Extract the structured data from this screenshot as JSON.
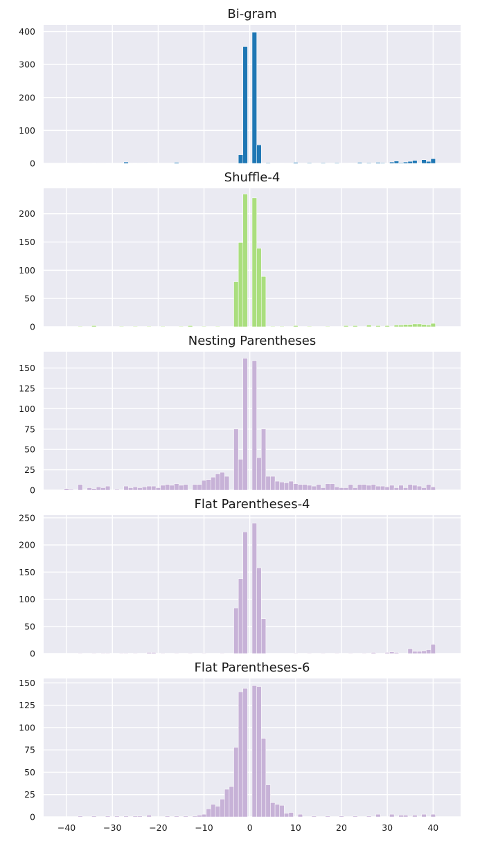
{
  "chart_data": [
    {
      "type": "bar",
      "title": "Bi-gram",
      "color": "#1f77b4",
      "ylim": [
        0,
        420
      ],
      "yticks": [
        0,
        100,
        200,
        300,
        400
      ],
      "xlim": [
        -45,
        46
      ],
      "xticks": [
        -40,
        -30,
        -20,
        -10,
        0,
        10,
        20,
        30,
        40
      ],
      "show_xtick_labels": false,
      "grid": true,
      "bars": [
        {
          "x": -40,
          "y": 1
        },
        {
          "x": -37,
          "y": 1
        },
        {
          "x": -34,
          "y": 1
        },
        {
          "x": -31,
          "y": 1
        },
        {
          "x": -27,
          "y": 4
        },
        {
          "x": -25,
          "y": 1
        },
        {
          "x": -22,
          "y": 1
        },
        {
          "x": -16,
          "y": 3
        },
        {
          "x": -13,
          "y": 1
        },
        {
          "x": -9,
          "y": 1
        },
        {
          "x": -6,
          "y": 1
        },
        {
          "x": -2,
          "y": 26
        },
        {
          "x": -1,
          "y": 354
        },
        {
          "x": 1,
          "y": 398
        },
        {
          "x": 2,
          "y": 56
        },
        {
          "x": 4,
          "y": 2
        },
        {
          "x": 7,
          "y": 1
        },
        {
          "x": 10,
          "y": 3
        },
        {
          "x": 13,
          "y": 2
        },
        {
          "x": 16,
          "y": 2
        },
        {
          "x": 19,
          "y": 2
        },
        {
          "x": 22,
          "y": 1
        },
        {
          "x": 24,
          "y": 3
        },
        {
          "x": 26,
          "y": 2
        },
        {
          "x": 28,
          "y": 3
        },
        {
          "x": 29,
          "y": 2
        },
        {
          "x": 31,
          "y": 4
        },
        {
          "x": 32,
          "y": 7
        },
        {
          "x": 33,
          "y": 2
        },
        {
          "x": 34,
          "y": 4
        },
        {
          "x": 35,
          "y": 6
        },
        {
          "x": 36,
          "y": 9
        },
        {
          "x": 38,
          "y": 11
        },
        {
          "x": 39,
          "y": 6
        },
        {
          "x": 40,
          "y": 14
        }
      ]
    },
    {
      "type": "bar",
      "title": "Shuffle-4",
      "color": "#aade7e",
      "ylim": [
        0,
        245
      ],
      "yticks": [
        0,
        50,
        100,
        150,
        200
      ],
      "xlim": [
        -45,
        46
      ],
      "xticks": [
        -40,
        -30,
        -20,
        -10,
        0,
        10,
        20,
        30,
        40
      ],
      "show_xtick_labels": false,
      "grid": true,
      "bars": [
        {
          "x": -37,
          "y": 1
        },
        {
          "x": -34,
          "y": 2
        },
        {
          "x": -28,
          "y": 1
        },
        {
          "x": -25,
          "y": 1
        },
        {
          "x": -22,
          "y": 1
        },
        {
          "x": -19,
          "y": 1
        },
        {
          "x": -15,
          "y": 1
        },
        {
          "x": -13,
          "y": 2
        },
        {
          "x": -10,
          "y": 1
        },
        {
          "x": -7,
          "y": 1
        },
        {
          "x": -3,
          "y": 80
        },
        {
          "x": -2,
          "y": 149
        },
        {
          "x": -1,
          "y": 235
        },
        {
          "x": 1,
          "y": 228
        },
        {
          "x": 2,
          "y": 139
        },
        {
          "x": 3,
          "y": 89
        },
        {
          "x": 5,
          "y": 1
        },
        {
          "x": 7,
          "y": 1
        },
        {
          "x": 10,
          "y": 2
        },
        {
          "x": 13,
          "y": 1
        },
        {
          "x": 17,
          "y": 1
        },
        {
          "x": 21,
          "y": 2
        },
        {
          "x": 23,
          "y": 2
        },
        {
          "x": 26,
          "y": 3
        },
        {
          "x": 28,
          "y": 2
        },
        {
          "x": 30,
          "y": 2
        },
        {
          "x": 32,
          "y": 3
        },
        {
          "x": 33,
          "y": 3
        },
        {
          "x": 34,
          "y": 4
        },
        {
          "x": 35,
          "y": 4
        },
        {
          "x": 36,
          "y": 5
        },
        {
          "x": 37,
          "y": 5
        },
        {
          "x": 38,
          "y": 4
        },
        {
          "x": 39,
          "y": 3
        },
        {
          "x": 40,
          "y": 6
        }
      ]
    },
    {
      "type": "bar",
      "title": "Nesting Parentheses",
      "color": "#c7b2d7",
      "ylim": [
        0,
        170
      ],
      "yticks": [
        0,
        25,
        50,
        75,
        100,
        125,
        150
      ],
      "xlim": [
        -45,
        46
      ],
      "xticks": [
        -40,
        -30,
        -20,
        -10,
        0,
        10,
        20,
        30,
        40
      ],
      "show_xtick_labels": false,
      "grid": true,
      "bars": [
        {
          "x": -40,
          "y": 2
        },
        {
          "x": -39,
          "y": 1
        },
        {
          "x": -37,
          "y": 7
        },
        {
          "x": -35,
          "y": 3
        },
        {
          "x": -34,
          "y": 2
        },
        {
          "x": -33,
          "y": 4
        },
        {
          "x": -32,
          "y": 3
        },
        {
          "x": -31,
          "y": 5
        },
        {
          "x": -29,
          "y": 1
        },
        {
          "x": -27,
          "y": 5
        },
        {
          "x": -26,
          "y": 3
        },
        {
          "x": -25,
          "y": 4
        },
        {
          "x": -24,
          "y": 3
        },
        {
          "x": -23,
          "y": 4
        },
        {
          "x": -22,
          "y": 5
        },
        {
          "x": -21,
          "y": 5
        },
        {
          "x": -20,
          "y": 3
        },
        {
          "x": -19,
          "y": 6
        },
        {
          "x": -18,
          "y": 7
        },
        {
          "x": -17,
          "y": 6
        },
        {
          "x": -16,
          "y": 8
        },
        {
          "x": -15,
          "y": 6
        },
        {
          "x": -14,
          "y": 7
        },
        {
          "x": -12,
          "y": 7
        },
        {
          "x": -11,
          "y": 7
        },
        {
          "x": -10,
          "y": 12
        },
        {
          "x": -9,
          "y": 13
        },
        {
          "x": -8,
          "y": 16
        },
        {
          "x": -7,
          "y": 20
        },
        {
          "x": -6,
          "y": 22
        },
        {
          "x": -5,
          "y": 17
        },
        {
          "x": -3,
          "y": 75
        },
        {
          "x": -2,
          "y": 38
        },
        {
          "x": -1,
          "y": 162
        },
        {
          "x": 1,
          "y": 159
        },
        {
          "x": 2,
          "y": 40
        },
        {
          "x": 3,
          "y": 75
        },
        {
          "x": 4,
          "y": 17
        },
        {
          "x": 5,
          "y": 17
        },
        {
          "x": 6,
          "y": 11
        },
        {
          "x": 7,
          "y": 10
        },
        {
          "x": 8,
          "y": 9
        },
        {
          "x": 9,
          "y": 11
        },
        {
          "x": 10,
          "y": 8
        },
        {
          "x": 11,
          "y": 7
        },
        {
          "x": 12,
          "y": 7
        },
        {
          "x": 13,
          "y": 6
        },
        {
          "x": 14,
          "y": 5
        },
        {
          "x": 15,
          "y": 7
        },
        {
          "x": 16,
          "y": 3
        },
        {
          "x": 17,
          "y": 8
        },
        {
          "x": 18,
          "y": 8
        },
        {
          "x": 19,
          "y": 4
        },
        {
          "x": 20,
          "y": 3
        },
        {
          "x": 21,
          "y": 3
        },
        {
          "x": 22,
          "y": 7
        },
        {
          "x": 23,
          "y": 3
        },
        {
          "x": 24,
          "y": 7
        },
        {
          "x": 25,
          "y": 7
        },
        {
          "x": 26,
          "y": 6
        },
        {
          "x": 27,
          "y": 7
        },
        {
          "x": 28,
          "y": 5
        },
        {
          "x": 29,
          "y": 5
        },
        {
          "x": 30,
          "y": 4
        },
        {
          "x": 31,
          "y": 6
        },
        {
          "x": 32,
          "y": 3
        },
        {
          "x": 33,
          "y": 6
        },
        {
          "x": 34,
          "y": 3
        },
        {
          "x": 35,
          "y": 7
        },
        {
          "x": 36,
          "y": 6
        },
        {
          "x": 37,
          "y": 5
        },
        {
          "x": 38,
          "y": 3
        },
        {
          "x": 39,
          "y": 7
        },
        {
          "x": 40,
          "y": 4
        }
      ]
    },
    {
      "type": "bar",
      "title": "Flat Parentheses-4",
      "color": "#c7b2d7",
      "ylim": [
        0,
        255
      ],
      "yticks": [
        0,
        50,
        100,
        150,
        200,
        250
      ],
      "xlim": [
        -45,
        46
      ],
      "xticks": [
        -40,
        -30,
        -20,
        -10,
        0,
        10,
        20,
        30,
        40
      ],
      "show_xtick_labels": false,
      "grid": true,
      "bars": [
        {
          "x": -37,
          "y": 1
        },
        {
          "x": -34,
          "y": 1
        },
        {
          "x": -32,
          "y": 1
        },
        {
          "x": -31,
          "y": 1
        },
        {
          "x": -28,
          "y": 1
        },
        {
          "x": -27,
          "y": 1
        },
        {
          "x": -25,
          "y": 1
        },
        {
          "x": -22,
          "y": 2
        },
        {
          "x": -21,
          "y": 2
        },
        {
          "x": -19,
          "y": 1
        },
        {
          "x": -16,
          "y": 1
        },
        {
          "x": -13,
          "y": 1
        },
        {
          "x": -10,
          "y": 1
        },
        {
          "x": -6,
          "y": 1
        },
        {
          "x": -3,
          "y": 84
        },
        {
          "x": -2,
          "y": 138
        },
        {
          "x": -1,
          "y": 224
        },
        {
          "x": 1,
          "y": 240
        },
        {
          "x": 2,
          "y": 158
        },
        {
          "x": 3,
          "y": 64
        },
        {
          "x": 10,
          "y": 1
        },
        {
          "x": 13,
          "y": 1
        },
        {
          "x": 16,
          "y": 1
        },
        {
          "x": 19,
          "y": 1
        },
        {
          "x": 22,
          "y": 1
        },
        {
          "x": 25,
          "y": 1
        },
        {
          "x": 27,
          "y": 2
        },
        {
          "x": 30,
          "y": 2
        },
        {
          "x": 31,
          "y": 3
        },
        {
          "x": 32,
          "y": 2
        },
        {
          "x": 35,
          "y": 9
        },
        {
          "x": 36,
          "y": 4
        },
        {
          "x": 37,
          "y": 4
        },
        {
          "x": 38,
          "y": 5
        },
        {
          "x": 39,
          "y": 7
        },
        {
          "x": 40,
          "y": 17
        }
      ]
    },
    {
      "type": "bar",
      "title": "Flat Parentheses-6",
      "color": "#c7b2d7",
      "ylim": [
        0,
        155
      ],
      "yticks": [
        0,
        25,
        50,
        75,
        100,
        125,
        150
      ],
      "xlim": [
        -45,
        46
      ],
      "xticks": [
        -40,
        -30,
        -20,
        -10,
        0,
        10,
        20,
        30,
        40
      ],
      "show_xtick_labels": true,
      "grid": true,
      "bars": [
        {
          "x": -37,
          "y": 1
        },
        {
          "x": -34,
          "y": 1
        },
        {
          "x": -31,
          "y": 1
        },
        {
          "x": -29,
          "y": 1
        },
        {
          "x": -27,
          "y": 1
        },
        {
          "x": -25,
          "y": 1
        },
        {
          "x": -24,
          "y": 1
        },
        {
          "x": -22,
          "y": 2
        },
        {
          "x": -18,
          "y": 1
        },
        {
          "x": -16,
          "y": 1
        },
        {
          "x": -14,
          "y": 1
        },
        {
          "x": -12,
          "y": 1
        },
        {
          "x": -11,
          "y": 2
        },
        {
          "x": -10,
          "y": 3
        },
        {
          "x": -9,
          "y": 9
        },
        {
          "x": -8,
          "y": 14
        },
        {
          "x": -7,
          "y": 12
        },
        {
          "x": -6,
          "y": 20
        },
        {
          "x": -5,
          "y": 31
        },
        {
          "x": -4,
          "y": 34
        },
        {
          "x": -3,
          "y": 78
        },
        {
          "x": -2,
          "y": 140
        },
        {
          "x": -1,
          "y": 144
        },
        {
          "x": 1,
          "y": 147
        },
        {
          "x": 2,
          "y": 146
        },
        {
          "x": 3,
          "y": 88
        },
        {
          "x": 4,
          "y": 36
        },
        {
          "x": 5,
          "y": 16
        },
        {
          "x": 6,
          "y": 14
        },
        {
          "x": 7,
          "y": 13
        },
        {
          "x": 8,
          "y": 4
        },
        {
          "x": 9,
          "y": 5
        },
        {
          "x": 11,
          "y": 3
        },
        {
          "x": 14,
          "y": 1
        },
        {
          "x": 17,
          "y": 1
        },
        {
          "x": 20,
          "y": 1
        },
        {
          "x": 23,
          "y": 1
        },
        {
          "x": 26,
          "y": 1
        },
        {
          "x": 28,
          "y": 3
        },
        {
          "x": 31,
          "y": 3
        },
        {
          "x": 33,
          "y": 2
        },
        {
          "x": 34,
          "y": 2
        },
        {
          "x": 36,
          "y": 2
        },
        {
          "x": 38,
          "y": 3
        },
        {
          "x": 40,
          "y": 3
        }
      ]
    }
  ]
}
